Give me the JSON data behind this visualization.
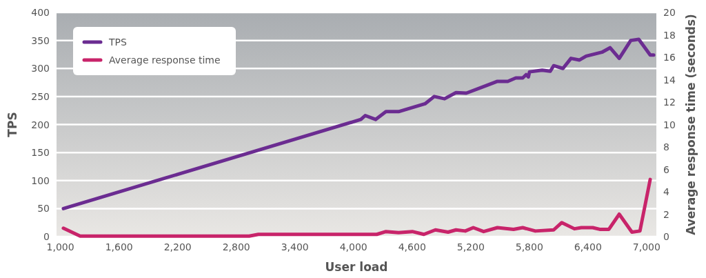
{
  "chart_data": {
    "type": "line",
    "xlabel": "User load",
    "ylabel": "TPS",
    "y2label": "Average response time (seconds)",
    "xlim": [
      960,
      7100
    ],
    "xticks": [
      {
        "value": 1000,
        "label": "1,000"
      },
      {
        "value": 1600,
        "label": "1,600"
      },
      {
        "value": 2200,
        "label": "2,200"
      },
      {
        "value": 2800,
        "label": "2,800"
      },
      {
        "value": 3400,
        "label": "3,400"
      },
      {
        "value": 4000,
        "label": "4,000"
      },
      {
        "value": 4600,
        "label": "4,600"
      },
      {
        "value": 5200,
        "label": "5,200"
      },
      {
        "value": 5800,
        "label": "5,800"
      },
      {
        "value": 6400,
        "label": "6,400"
      },
      {
        "value": 7000,
        "label": "7,000"
      }
    ],
    "ylim": [
      0,
      400
    ],
    "yticks": [
      0,
      50,
      100,
      150,
      200,
      250,
      300,
      350,
      400
    ],
    "y2lim": [
      0,
      20
    ],
    "y2ticks": [
      0,
      2,
      4,
      6,
      8,
      10,
      12,
      14,
      16,
      18,
      20
    ],
    "grid": "y",
    "legend": "top left",
    "line_style": "solid",
    "series": [
      {
        "name": "TPS",
        "color": "#6b2c91",
        "x": [
          1030,
          4075,
          4120,
          4226,
          4332,
          4461,
          4732,
          4826,
          4932,
          5049,
          5155,
          5367,
          5473,
          5579,
          5661,
          5732,
          5767,
          5790,
          5802,
          5931,
          6014,
          6049,
          6144,
          6226,
          6311,
          6381,
          6543,
          6626,
          6720,
          6838,
          6920,
          7037,
          7072
        ],
        "values": [
          50,
          209,
          216,
          209,
          223,
          223,
          237,
          250,
          246,
          257,
          256,
          270,
          277,
          277,
          283,
          283,
          289,
          285,
          294,
          297,
          295,
          305,
          300,
          318,
          315,
          322,
          329,
          337,
          318,
          350,
          352,
          324,
          324
        ]
      },
      {
        "name": "Average response time",
        "color": "#c8246a",
        "axis": "y2",
        "x": [
          1030,
          1202,
          2932,
          3026,
          4238,
          4332,
          4461,
          4602,
          4720,
          4838,
          4968,
          5049,
          5144,
          5226,
          5332,
          5473,
          5638,
          5732,
          5861,
          6049,
          6132,
          6261,
          6332,
          6449,
          6520,
          6614,
          6720,
          6850,
          6932,
          7037
        ],
        "values": [
          0.75,
          0.05,
          0.05,
          0.2,
          0.2,
          0.45,
          0.35,
          0.45,
          0.2,
          0.6,
          0.4,
          0.6,
          0.5,
          0.8,
          0.45,
          0.8,
          0.65,
          0.8,
          0.5,
          0.6,
          1.25,
          0.7,
          0.8,
          0.8,
          0.65,
          0.65,
          2.0,
          0.4,
          0.5,
          5.1
        ]
      }
    ]
  }
}
